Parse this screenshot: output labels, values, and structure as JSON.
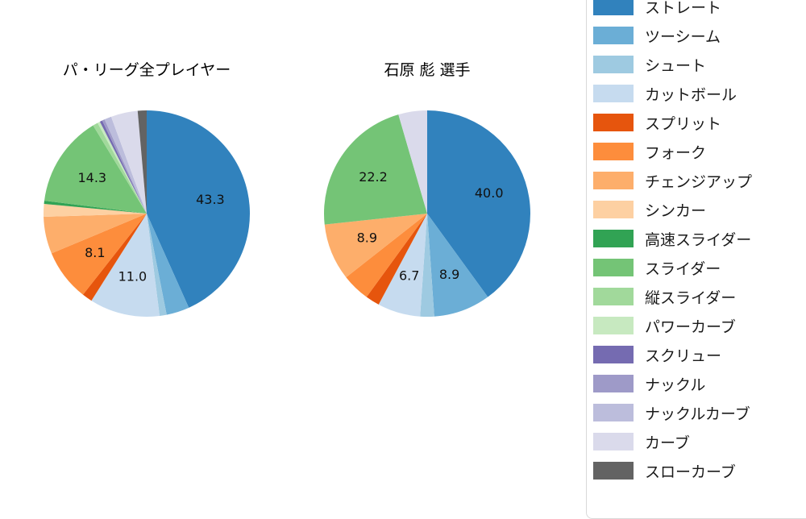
{
  "titles": {
    "left": "パ・リーグ全プレイヤー",
    "right": "石原 彪  選手"
  },
  "chart_data": [
    {
      "type": "pie",
      "title": "パ・リーグ全プレイヤー",
      "start_angle": "top",
      "direction": "clockwise",
      "labels_shown": [
        "43.3",
        "11.0",
        "8.1",
        "14.3"
      ],
      "slices": [
        {
          "name": "ストレート",
          "value": 43.3,
          "label": "43.3",
          "color": "#3182bd"
        },
        {
          "name": "ツーシーム",
          "value": 3.6,
          "label": "",
          "color": "#6baed6"
        },
        {
          "name": "シュート",
          "value": 1.1,
          "label": "",
          "color": "#9ecae1"
        },
        {
          "name": "カットボール",
          "value": 11.0,
          "label": "11.0",
          "color": "#c6dbef"
        },
        {
          "name": "スプリット",
          "value": 1.6,
          "label": "",
          "color": "#e6550d"
        },
        {
          "name": "フォーク",
          "value": 8.1,
          "label": "8.1",
          "color": "#fd8d3c"
        },
        {
          "name": "チェンジアップ",
          "value": 5.8,
          "label": "",
          "color": "#fdae6b"
        },
        {
          "name": "シンカー",
          "value": 2.0,
          "label": "",
          "color": "#fdd0a2"
        },
        {
          "name": "高速スライダー",
          "value": 0.5,
          "label": "",
          "color": "#31a354"
        },
        {
          "name": "スライダー",
          "value": 14.3,
          "label": "14.3",
          "color": "#74c476"
        },
        {
          "name": "縦スライダー",
          "value": 0.8,
          "label": "",
          "color": "#a1d99b"
        },
        {
          "name": "パワーカーブ",
          "value": 0.4,
          "label": "",
          "color": "#c7e9c0"
        },
        {
          "name": "スクリュー",
          "value": 0.4,
          "label": "",
          "color": "#756bb1"
        },
        {
          "name": "ナックル",
          "value": 0.4,
          "label": "",
          "color": "#9e9ac8"
        },
        {
          "name": "ナックルカーブ",
          "value": 1.1,
          "label": "",
          "color": "#bcbddc"
        },
        {
          "name": "カーブ",
          "value": 4.2,
          "label": "",
          "color": "#dadaeb"
        },
        {
          "name": "スローカーブ",
          "value": 1.4,
          "label": "",
          "color": "#636363"
        }
      ]
    },
    {
      "type": "pie",
      "title": "石原 彪  選手",
      "start_angle": "top",
      "direction": "clockwise",
      "labels_shown": [
        "40.0",
        "8.9",
        "6.7",
        "8.9",
        "22.2"
      ],
      "slices": [
        {
          "name": "ストレート",
          "value": 40.0,
          "label": "40.0",
          "color": "#3182bd"
        },
        {
          "name": "ツーシーム",
          "value": 8.9,
          "label": "8.9",
          "color": "#6baed6"
        },
        {
          "name": "シュート",
          "value": 2.2,
          "label": "",
          "color": "#9ecae1"
        },
        {
          "name": "カットボール",
          "value": 6.7,
          "label": "6.7",
          "color": "#c6dbef"
        },
        {
          "name": "スプリット",
          "value": 2.2,
          "label": "",
          "color": "#e6550d"
        },
        {
          "name": "フォーク",
          "value": 4.4,
          "label": "",
          "color": "#fd8d3c"
        },
        {
          "name": "チェンジアップ",
          "value": 8.9,
          "label": "8.9",
          "color": "#fdae6b"
        },
        {
          "name": "スライダー",
          "value": 22.2,
          "label": "22.2",
          "color": "#74c476"
        },
        {
          "name": "カーブ",
          "value": 4.5,
          "label": "",
          "color": "#dadaeb"
        }
      ]
    }
  ],
  "legend": {
    "items": [
      {
        "label": "ストレート",
        "color": "#3182bd"
      },
      {
        "label": "ツーシーム",
        "color": "#6baed6"
      },
      {
        "label": "シュート",
        "color": "#9ecae1"
      },
      {
        "label": "カットボール",
        "color": "#c6dbef"
      },
      {
        "label": "スプリット",
        "color": "#e6550d"
      },
      {
        "label": "フォーク",
        "color": "#fd8d3c"
      },
      {
        "label": "チェンジアップ",
        "color": "#fdae6b"
      },
      {
        "label": "シンカー",
        "color": "#fdd0a2"
      },
      {
        "label": "高速スライダー",
        "color": "#31a354"
      },
      {
        "label": "スライダー",
        "color": "#74c476"
      },
      {
        "label": "縦スライダー",
        "color": "#a1d99b"
      },
      {
        "label": "パワーカーブ",
        "color": "#c7e9c0"
      },
      {
        "label": "スクリュー",
        "color": "#756bb1"
      },
      {
        "label": "ナックル",
        "color": "#9e9ac8"
      },
      {
        "label": "ナックルカーブ",
        "color": "#bcbddc"
      },
      {
        "label": "カーブ",
        "color": "#dadaeb"
      },
      {
        "label": "スローカーブ",
        "color": "#636363"
      }
    ]
  }
}
